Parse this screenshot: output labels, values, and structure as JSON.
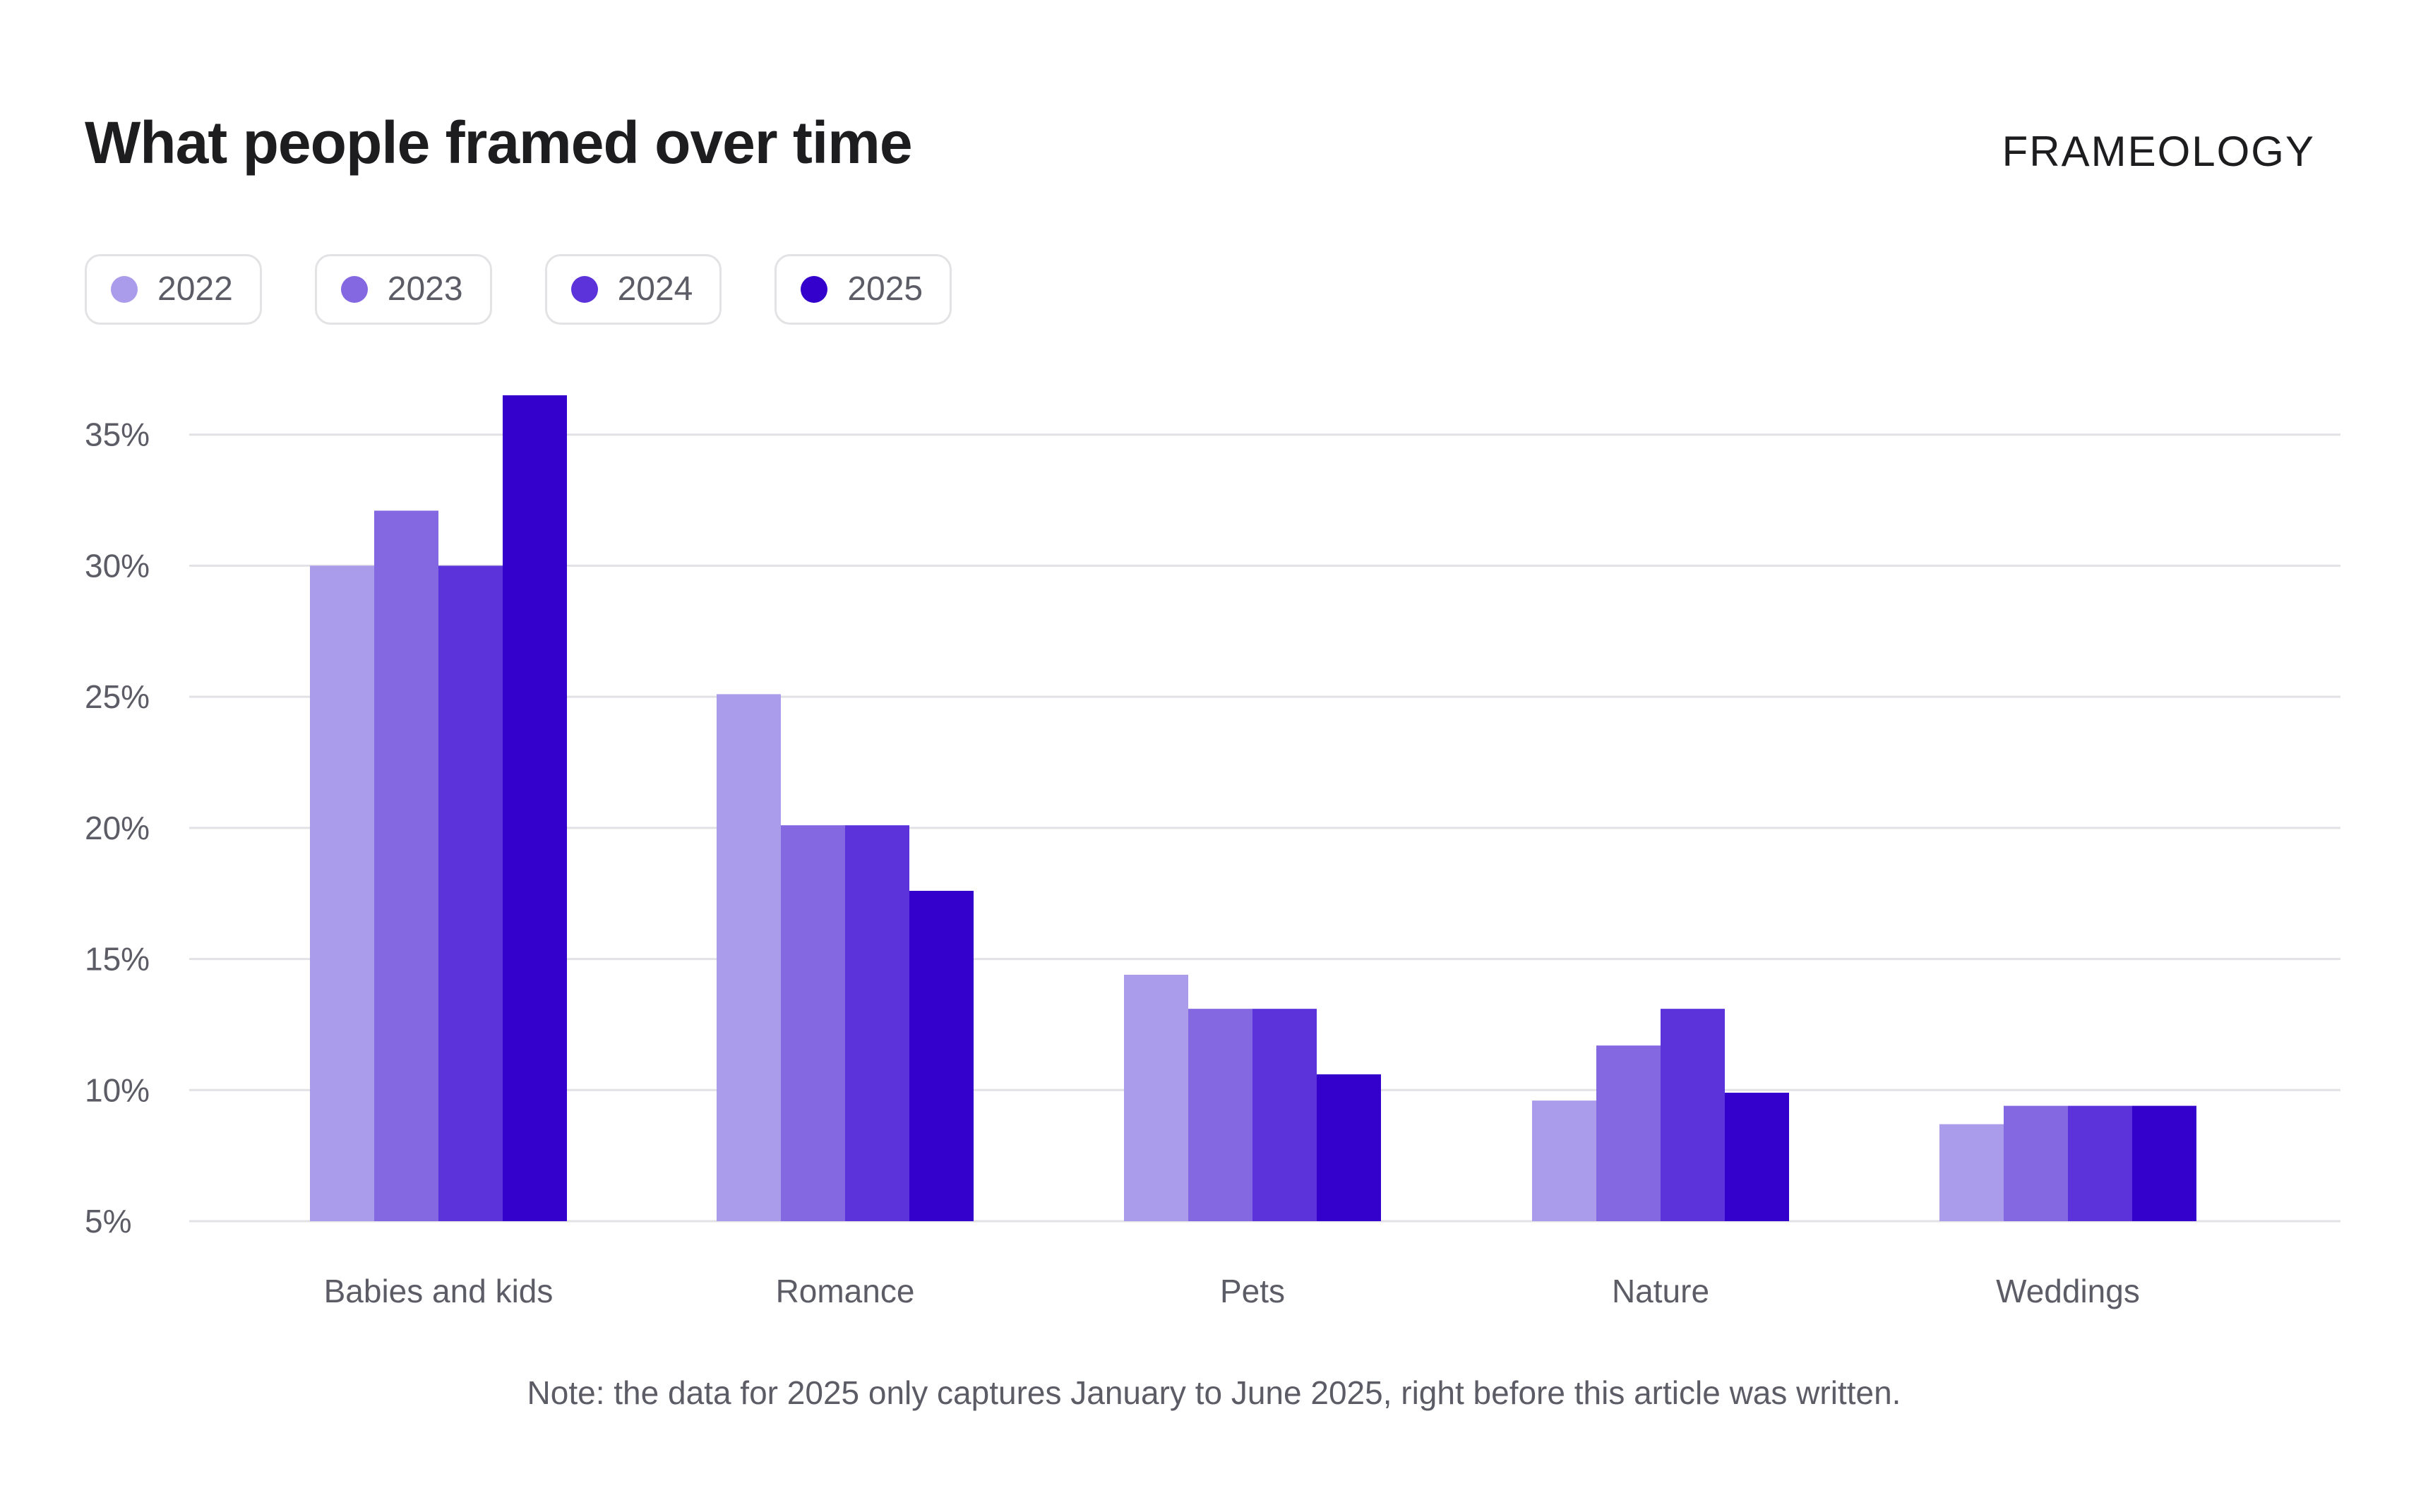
{
  "header": {
    "title": "What people framed over time",
    "brand": "FRAMEOLOGY"
  },
  "colors": {
    "2022": "#ab9ceb",
    "2023": "#8468e1",
    "2024": "#5c33da",
    "2025": "#3300cc",
    "grid": "#e2e2e6",
    "text": "#5c5c66"
  },
  "legend": [
    {
      "label": "2022",
      "color": "#ab9ceb"
    },
    {
      "label": "2023",
      "color": "#8468e1"
    },
    {
      "label": "2024",
      "color": "#5c33da"
    },
    {
      "label": "2025",
      "color": "#3300cc"
    }
  ],
  "note": "Note: the data for 2025 only captures January to June 2025, right before this article was written.",
  "chart_data": {
    "type": "bar",
    "title": "What people framed over time",
    "xlabel": "",
    "ylabel": "",
    "categories": [
      "Babies and kids",
      "Romance",
      "Pets",
      "Nature",
      "Weddings"
    ],
    "series": [
      {
        "name": "2022",
        "values": [
          30,
          25.1,
          14.4,
          9.6,
          8.7
        ]
      },
      {
        "name": "2023",
        "values": [
          32.1,
          20.1,
          13.1,
          11.7,
          9.4
        ]
      },
      {
        "name": "2024",
        "values": [
          30,
          20.1,
          13.1,
          13.1,
          9.4
        ]
      },
      {
        "name": "2025",
        "values": [
          36.5,
          17.6,
          10.6,
          9.9,
          9.4
        ]
      }
    ],
    "ylim": [
      5,
      36.5
    ],
    "yticks": [
      5,
      10,
      15,
      20,
      25,
      30,
      35
    ],
    "ytick_labels": [
      "5%",
      "10%",
      "15%",
      "20%",
      "25%",
      "30%",
      "35%"
    ],
    "grid": true,
    "legend_position": "top-left"
  }
}
